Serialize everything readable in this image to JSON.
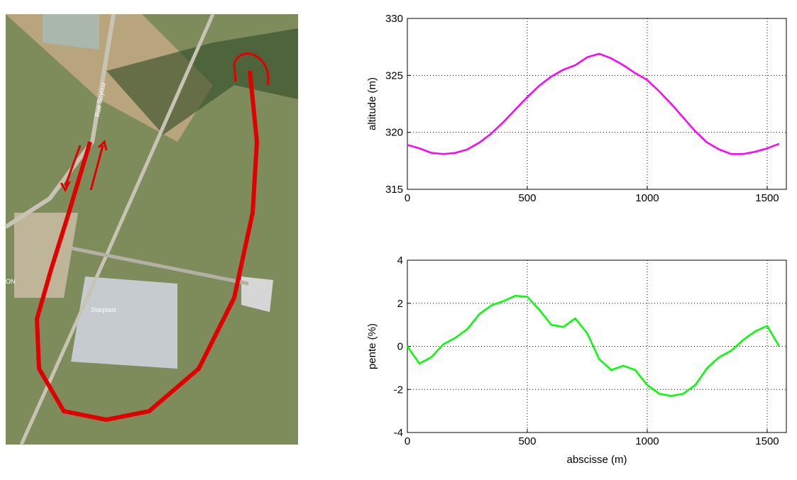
{
  "map": {
    "labels": [
      "Rue Soyouz",
      "Starplast",
      "ON"
    ]
  },
  "chart_data": [
    {
      "type": "line",
      "ylabel": "altitude (m)",
      "x": [
        0,
        50,
        100,
        150,
        200,
        250,
        300,
        350,
        400,
        450,
        500,
        550,
        600,
        650,
        700,
        750,
        800,
        850,
        900,
        950,
        1000,
        1050,
        1100,
        1150,
        1200,
        1250,
        1300,
        1350,
        1400,
        1450,
        1500,
        1550
      ],
      "series": [
        {
          "color": "#ff00ff",
          "values": [
            318.9,
            318.6,
            318.2,
            318.1,
            318.2,
            318.5,
            319.1,
            319.9,
            320.9,
            322.0,
            323.1,
            324.1,
            324.9,
            325.5,
            325.9,
            326.6,
            326.9,
            326.5,
            325.9,
            325.2,
            324.6,
            323.6,
            322.5,
            321.3,
            320.1,
            319.1,
            318.5,
            318.1,
            318.1,
            318.3,
            318.6,
            319.0
          ]
        }
      ],
      "xlim": [
        0,
        1580
      ],
      "xticks": [
        0,
        500,
        1000,
        1500
      ],
      "ylim": [
        315,
        330
      ],
      "yticks": [
        315,
        320,
        325,
        330
      ],
      "grid": true
    },
    {
      "type": "line",
      "xlabel": "abscisse (m)",
      "ylabel": "pente (%)",
      "x": [
        0,
        50,
        100,
        150,
        200,
        250,
        300,
        350,
        400,
        450,
        500,
        550,
        600,
        650,
        700,
        750,
        800,
        850,
        900,
        950,
        1000,
        1050,
        1100,
        1150,
        1200,
        1250,
        1300,
        1350,
        1400,
        1450,
        1500,
        1550
      ],
      "series": [
        {
          "color": "#00ff00",
          "values": [
            0,
            -0.8,
            -0.5,
            0.1,
            0.4,
            0.8,
            1.5,
            1.9,
            2.1,
            2.35,
            2.3,
            1.7,
            1.0,
            0.9,
            1.3,
            0.6,
            -0.6,
            -1.1,
            -0.9,
            -1.1,
            -1.8,
            -2.2,
            -2.3,
            -2.2,
            -1.8,
            -1.0,
            -0.5,
            -0.2,
            0.3,
            0.7,
            0.95,
            0.0
          ]
        }
      ],
      "xlim": [
        0,
        1580
      ],
      "xticks": [
        0,
        500,
        1000,
        1500
      ],
      "ylim": [
        -4,
        4
      ],
      "yticks": [
        -4,
        -2,
        0,
        2,
        4
      ],
      "grid": true
    }
  ]
}
